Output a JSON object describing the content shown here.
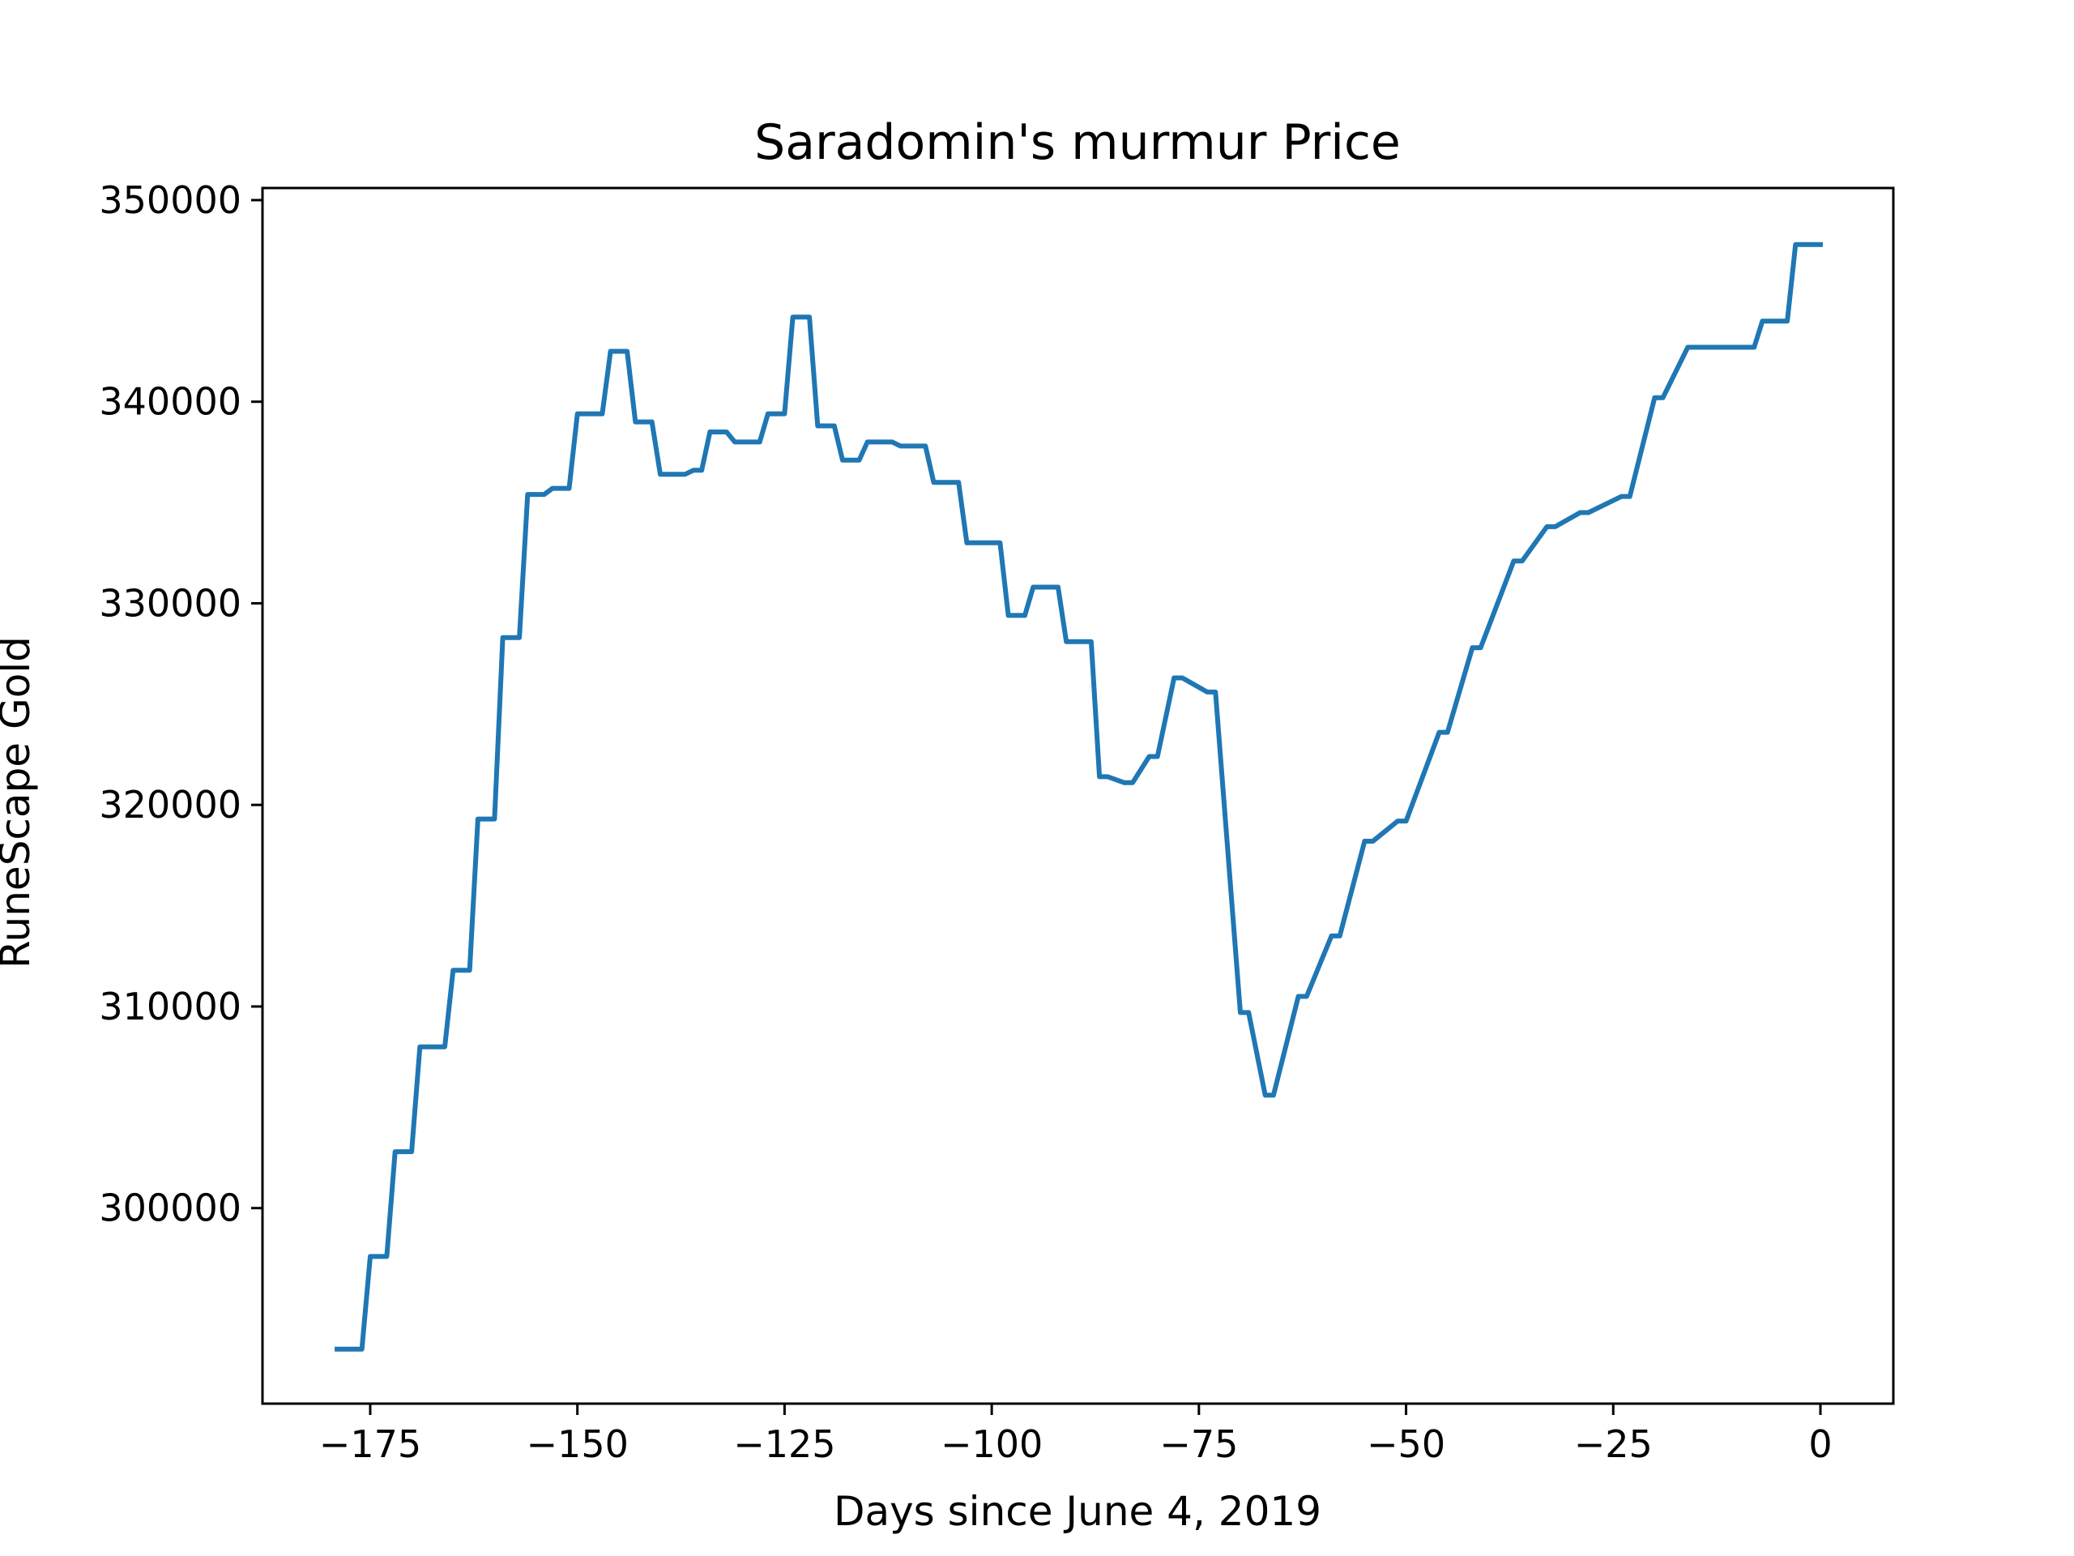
{
  "chart_data": {
    "type": "line",
    "title": "Saradomin's murmur Price",
    "xlabel": "Days since June 4, 2019",
    "ylabel": "RuneScape Gold",
    "xlim": [
      -188,
      8.8
    ],
    "ylim": [
      290300,
      350600
    ],
    "xticks": [
      -175,
      -150,
      -125,
      -100,
      -75,
      -50,
      -25,
      0
    ],
    "xtick_labels": [
      "−175",
      "−150",
      "−125",
      "−100",
      "−75",
      "−50",
      "−25",
      "0"
    ],
    "yticks": [
      300000,
      310000,
      320000,
      330000,
      340000,
      350000
    ],
    "ytick_labels": [
      "300000",
      "310000",
      "320000",
      "330000",
      "340000",
      "350000"
    ],
    "grid": false,
    "series": [
      {
        "color": "#1f77b4",
        "x": [
          -179,
          -176,
          -175,
          -173,
          -172,
          -170,
          -169,
          -166,
          -165,
          -163,
          -162,
          -160,
          -159,
          -157,
          -156,
          -154,
          -153,
          -151,
          -150,
          -147,
          -146,
          -144,
          -143,
          -141,
          -140,
          -137,
          -136,
          -135,
          -134,
          -132,
          -131,
          -128,
          -127,
          -125,
          -124,
          -122,
          -121,
          -119,
          -118,
          -116,
          -115,
          -112,
          -111,
          -108,
          -107,
          -104,
          -103,
          -99,
          -98,
          -96,
          -95,
          -92,
          -91,
          -88,
          -87,
          -86,
          -84,
          -83,
          -81,
          -80,
          -78,
          -77,
          -74,
          -73,
          -70,
          -69,
          -67,
          -66,
          -63,
          -62,
          -59,
          -58,
          -55,
          -54,
          -51,
          -50,
          -46,
          -45,
          -42,
          -41,
          -37,
          -36,
          -33,
          -32,
          -29,
          -28,
          -24,
          -23,
          -20,
          -19,
          -16,
          -15,
          -8,
          -7,
          -4,
          -3,
          0
        ],
        "y": [
          293000,
          293000,
          297600,
          297600,
          302800,
          302800,
          308000,
          308000,
          311800,
          311800,
          319300,
          319300,
          328300,
          328300,
          335400,
          335400,
          335700,
          335700,
          339400,
          339400,
          342500,
          342500,
          339000,
          339000,
          336400,
          336400,
          336600,
          336600,
          338500,
          338500,
          338000,
          338000,
          339400,
          339400,
          344200,
          344200,
          338800,
          338800,
          337100,
          337100,
          338000,
          338000,
          337800,
          337800,
          336000,
          336000,
          333000,
          333000,
          329400,
          329400,
          330800,
          330800,
          328100,
          328100,
          321400,
          321400,
          321100,
          321100,
          322400,
          322400,
          326300,
          326300,
          325600,
          325600,
          309700,
          309700,
          305600,
          305600,
          310500,
          310500,
          313500,
          313500,
          318200,
          318200,
          319200,
          319200,
          323600,
          323600,
          327800,
          327800,
          332100,
          332100,
          333800,
          333800,
          334500,
          334500,
          335300,
          335300,
          340200,
          340200,
          342700,
          342700,
          342700,
          344000,
          344000,
          347800,
          347800
        ]
      }
    ]
  }
}
